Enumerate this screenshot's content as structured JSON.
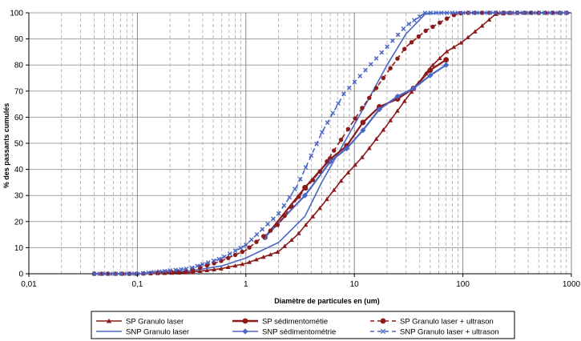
{
  "chart_data": {
    "type": "line",
    "xscale": "log",
    "xlim": [
      0.01,
      1000
    ],
    "ylim": [
      0,
      100
    ],
    "grid": true,
    "legend_position": "bottom",
    "xlabel": "Diamètre de particules en (um)",
    "ylabel": "% des passants cumulés",
    "x_ticks": [
      "0,01",
      "0,1",
      "1",
      "10",
      "100",
      "1000"
    ],
    "y_ticks": [
      "0",
      "10",
      "20",
      "30",
      "40",
      "50",
      "60",
      "70",
      "80",
      "90",
      "100"
    ],
    "series": [
      {
        "name": "SP Granulo laser",
        "color": "#8b1a1a",
        "line": "solid",
        "marker": "triangle",
        "x": [
          0.04,
          0.1,
          0.3,
          0.6,
          1,
          2,
          3,
          5,
          8,
          12,
          20,
          30,
          50,
          70,
          100,
          150,
          200,
          300,
          1000
        ],
        "y": [
          0,
          0,
          0.5,
          2,
          4,
          8.5,
          15,
          26,
          37,
          45,
          57,
          67,
          79,
          85,
          89,
          95,
          99.5,
          100,
          100
        ]
      },
      {
        "name": "SNP Granulo laser",
        "color": "#4a66c4",
        "line": "solid",
        "marker": "none",
        "x": [
          0.04,
          0.1,
          0.3,
          0.6,
          1,
          2,
          3.5,
          5,
          8,
          12,
          20,
          30,
          45,
          60,
          1000
        ],
        "y": [
          0,
          0,
          1,
          3,
          6,
          12,
          22,
          35,
          50,
          63,
          80,
          92,
          99.5,
          100,
          100
        ]
      },
      {
        "name": "SP sédimentométie",
        "color": "#8b1a1a",
        "line": "solid",
        "marker": "circle",
        "x": [
          1.5,
          3.5,
          6,
          8.5,
          12,
          17,
          25,
          35,
          50,
          70
        ],
        "y": [
          14,
          33,
          44,
          49,
          58,
          64,
          67,
          71,
          78,
          82
        ]
      },
      {
        "name": "SNP sédimentométrie",
        "color": "#4a66c4",
        "line": "solid",
        "marker": "diamond",
        "x": [
          1.5,
          3.5,
          6,
          8.5,
          12,
          17,
          25,
          35,
          50,
          70
        ],
        "y": [
          14,
          30,
          43,
          48,
          55,
          63,
          68,
          71,
          76,
          80
        ]
      },
      {
        "name": "SP Granulo laser + ultrason",
        "color": "#8b1a1a",
        "line": "dashed",
        "marker": "circle",
        "x": [
          0.04,
          0.1,
          0.3,
          0.6,
          1,
          2,
          3,
          5,
          8,
          12,
          20,
          30,
          45,
          60,
          80,
          100,
          1000
        ],
        "y": [
          0,
          0,
          1,
          5,
          9,
          19,
          29,
          40,
          53,
          64,
          77,
          87,
          93,
          96,
          99,
          100,
          100
        ]
      },
      {
        "name": "SNP Granulo laser + ultrason",
        "color": "#4a66c4",
        "line": "dashed",
        "marker": "x",
        "x": [
          0.04,
          0.1,
          0.3,
          0.6,
          1,
          2,
          3,
          5,
          8,
          12,
          20,
          30,
          45,
          60,
          1000
        ],
        "y": [
          0,
          0,
          2,
          6,
          11,
          23,
          34,
          54,
          69,
          77,
          87,
          95,
          100,
          100,
          100
        ]
      }
    ]
  }
}
